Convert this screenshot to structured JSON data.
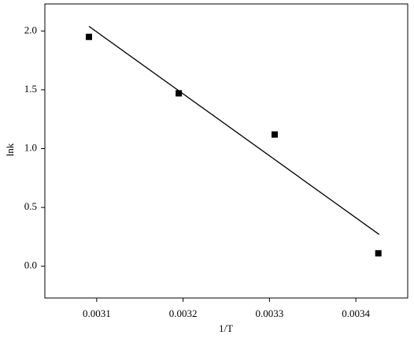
{
  "chart_data": {
    "type": "scatter",
    "x_label": "1/T",
    "y_label": "lnk",
    "xlim": [
      0.00304,
      0.00346
    ],
    "ylim": [
      -0.27,
      2.23
    ],
    "xticks": [
      0.0031,
      0.0032,
      0.0033,
      0.0034
    ],
    "yticks": [
      {
        "value": 0,
        "label": "0.0"
      },
      0.5,
      {
        "value": 1,
        "label": "1.0"
      },
      1.5,
      {
        "value": 2,
        "label": "2.0"
      }
    ],
    "series": [
      {
        "mode": "markers",
        "color": "#000000",
        "x": [
          0.003091,
          0.003195,
          0.003306,
          0.003426
        ],
        "values": [
          1.95,
          1.47,
          1.12,
          0.11
        ]
      },
      {
        "mode": "line",
        "color": "#000000",
        "x": [
          0.003091,
          0.003427
        ],
        "values": [
          2.04,
          0.27
        ]
      }
    ]
  }
}
